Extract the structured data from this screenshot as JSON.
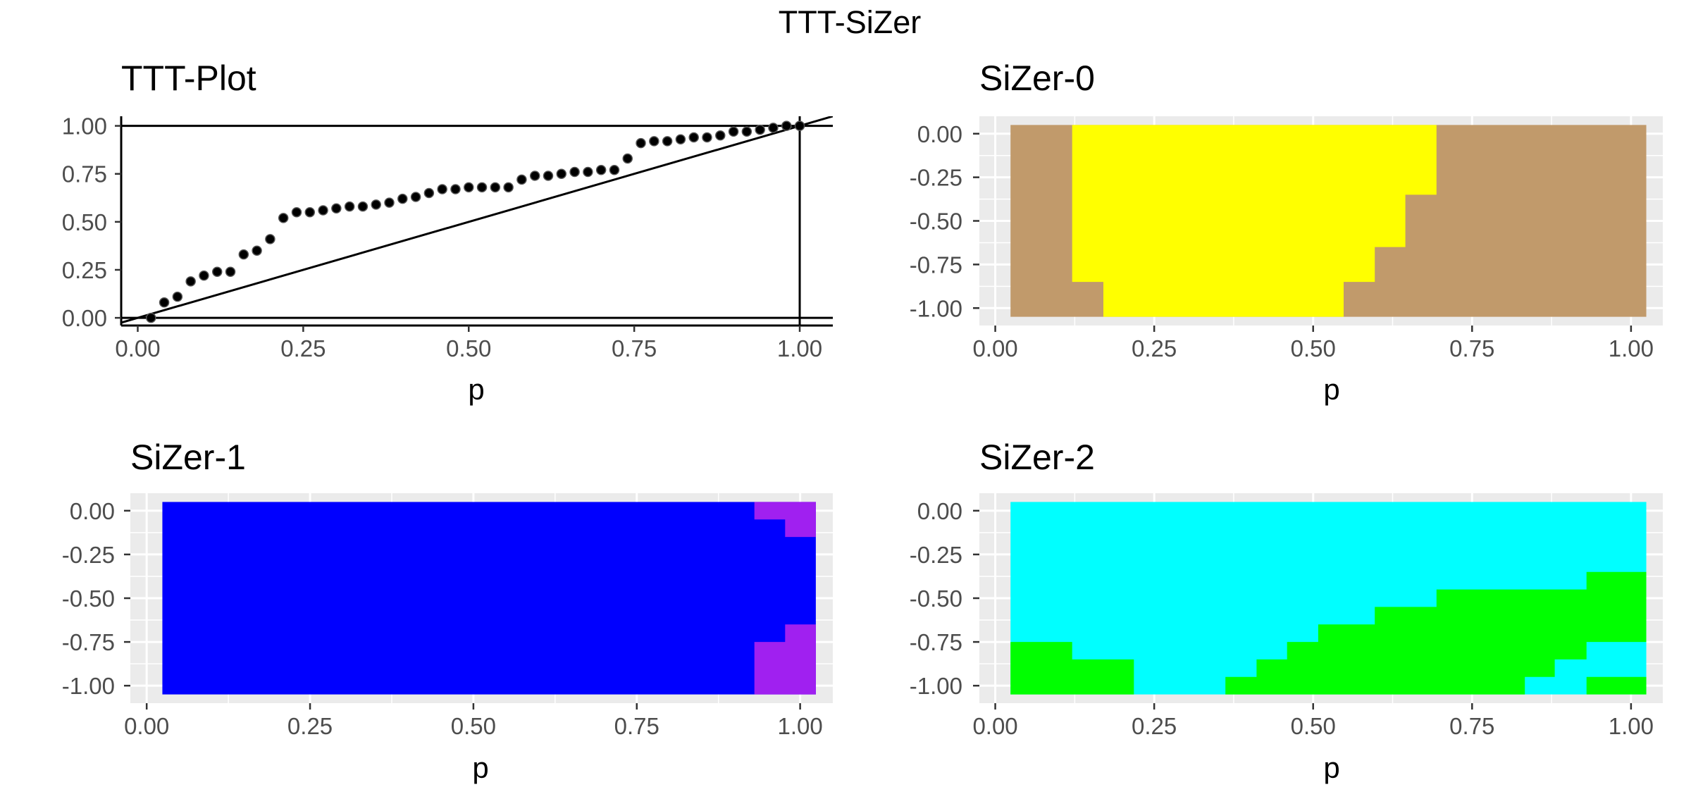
{
  "figure_title": "TTT-SiZer",
  "colors": {
    "panel_gray": "#EBEBEB",
    "grid_white": "#FFFFFF",
    "tick_text": "#4D4D4D",
    "tick_mark": "#333333"
  },
  "chart_data": [
    {
      "id": "ttt",
      "type": "scatter",
      "title": "TTT-Plot",
      "xlabel": "p",
      "ylabel": "",
      "xlim": [
        -0.025,
        1.05
      ],
      "ylim": [
        -0.04,
        1.05
      ],
      "x_ticks": [
        "0.00",
        "0.25",
        "0.50",
        "0.75",
        "1.00"
      ],
      "y_ticks": [
        "0.00",
        "0.25",
        "0.50",
        "0.75",
        "1.00"
      ],
      "background": "white",
      "reference_lines": {
        "hlines": [
          0,
          1
        ],
        "vline": 1,
        "diagonal": true
      },
      "points": [
        [
          0.02,
          0.0
        ],
        [
          0.04,
          0.08
        ],
        [
          0.06,
          0.11
        ],
        [
          0.08,
          0.19
        ],
        [
          0.1,
          0.22
        ],
        [
          0.12,
          0.24
        ],
        [
          0.14,
          0.24
        ],
        [
          0.16,
          0.33
        ],
        [
          0.18,
          0.35
        ],
        [
          0.2,
          0.41
        ],
        [
          0.22,
          0.52
        ],
        [
          0.24,
          0.55
        ],
        [
          0.26,
          0.55
        ],
        [
          0.28,
          0.56
        ],
        [
          0.3,
          0.57
        ],
        [
          0.32,
          0.58
        ],
        [
          0.34,
          0.58
        ],
        [
          0.36,
          0.59
        ],
        [
          0.38,
          0.6
        ],
        [
          0.4,
          0.62
        ],
        [
          0.42,
          0.63
        ],
        [
          0.44,
          0.65
        ],
        [
          0.46,
          0.67
        ],
        [
          0.48,
          0.67
        ],
        [
          0.5,
          0.68
        ],
        [
          0.52,
          0.68
        ],
        [
          0.54,
          0.68
        ],
        [
          0.56,
          0.68
        ],
        [
          0.58,
          0.72
        ],
        [
          0.6,
          0.74
        ],
        [
          0.62,
          0.74
        ],
        [
          0.64,
          0.75
        ],
        [
          0.66,
          0.76
        ],
        [
          0.68,
          0.76
        ],
        [
          0.7,
          0.77
        ],
        [
          0.72,
          0.77
        ],
        [
          0.74,
          0.83
        ],
        [
          0.76,
          0.91
        ],
        [
          0.78,
          0.92
        ],
        [
          0.8,
          0.92
        ],
        [
          0.82,
          0.93
        ],
        [
          0.84,
          0.94
        ],
        [
          0.86,
          0.94
        ],
        [
          0.88,
          0.95
        ],
        [
          0.9,
          0.97
        ],
        [
          0.92,
          0.97
        ],
        [
          0.94,
          0.98
        ],
        [
          0.96,
          0.99
        ],
        [
          0.98,
          1.0
        ],
        [
          1.0,
          1.0
        ]
      ]
    },
    {
      "id": "sizer0",
      "type": "heatmap",
      "title": "SiZer-0",
      "xlabel": "p",
      "ylabel": "",
      "xlim": [
        -0.025,
        1.05
      ],
      "ylim": [
        -1.1,
        0.1
      ],
      "x_ticks": [
        "0.00",
        "0.25",
        "0.50",
        "0.75",
        "1.00"
      ],
      "y_ticks": [
        "0.00",
        "-0.25",
        "-0.50",
        "-0.75",
        "-1.00"
      ],
      "background": "gray",
      "regions": [
        {
          "color": "#C19A6B",
          "x": [
            0.024,
            1.024
          ],
          "y": [
            -1.05,
            0.05
          ]
        },
        {
          "color": "#FFFF00",
          "polygon": [
            [
              0.121,
              0.05
            ],
            [
              0.694,
              0.05
            ],
            [
              0.694,
              -0.35
            ],
            [
              0.645,
              -0.35
            ],
            [
              0.645,
              -0.65
            ],
            [
              0.597,
              -0.65
            ],
            [
              0.597,
              -0.85
            ],
            [
              0.548,
              -0.85
            ],
            [
              0.548,
              -1.05
            ],
            [
              0.17,
              -1.05
            ],
            [
              0.17,
              -0.85
            ],
            [
              0.121,
              -0.85
            ]
          ]
        }
      ]
    },
    {
      "id": "sizer1",
      "type": "heatmap",
      "title": "SiZer-1",
      "xlabel": "p",
      "ylabel": "",
      "xlim": [
        -0.025,
        1.05
      ],
      "ylim": [
        -1.1,
        0.1
      ],
      "x_ticks": [
        "0.00",
        "0.25",
        "0.50",
        "0.75",
        "1.00"
      ],
      "y_ticks": [
        "0.00",
        "-0.25",
        "-0.50",
        "-0.75",
        "-1.00"
      ],
      "background": "gray",
      "regions": [
        {
          "color": "#0000FF",
          "x": [
            0.024,
            1.024
          ],
          "y": [
            -1.05,
            0.05
          ]
        },
        {
          "color": "#A020F0",
          "polygon": [
            [
              0.93,
              0.05
            ],
            [
              1.024,
              0.05
            ],
            [
              1.024,
              -0.15
            ],
            [
              0.977,
              -0.15
            ],
            [
              0.977,
              -0.05
            ],
            [
              0.93,
              -0.05
            ]
          ]
        },
        {
          "color": "#A020F0",
          "polygon": [
            [
              0.977,
              -0.65
            ],
            [
              1.024,
              -0.65
            ],
            [
              1.024,
              -1.05
            ],
            [
              0.93,
              -1.05
            ],
            [
              0.93,
              -0.75
            ],
            [
              0.977,
              -0.75
            ]
          ]
        }
      ]
    },
    {
      "id": "sizer2",
      "type": "heatmap",
      "title": "SiZer-2",
      "xlabel": "p",
      "ylabel": "",
      "xlim": [
        -0.025,
        1.05
      ],
      "ylim": [
        -1.1,
        0.1
      ],
      "x_ticks": [
        "0.00",
        "0.25",
        "0.50",
        "0.75",
        "1.00"
      ],
      "y_ticks": [
        "0.00",
        "-0.25",
        "-0.50",
        "-0.75",
        "-1.00"
      ],
      "background": "gray",
      "regions": [
        {
          "color": "#00FFFF",
          "x": [
            0.024,
            1.024
          ],
          "y": [
            -1.05,
            0.05
          ]
        },
        {
          "color": "#00FF00",
          "polygon": [
            [
              0.024,
              -0.75
            ],
            [
              0.121,
              -0.75
            ],
            [
              0.121,
              -0.85
            ],
            [
              0.218,
              -0.85
            ],
            [
              0.218,
              -1.05
            ],
            [
              0.024,
              -1.05
            ]
          ]
        },
        {
          "color": "#00FF00",
          "polygon": [
            [
              0.362,
              -0.95
            ],
            [
              0.411,
              -0.95
            ],
            [
              0.411,
              -0.85
            ],
            [
              0.459,
              -0.85
            ],
            [
              0.459,
              -0.75
            ],
            [
              0.508,
              -0.75
            ],
            [
              0.508,
              -0.65
            ],
            [
              0.597,
              -0.65
            ],
            [
              0.597,
              -0.55
            ],
            [
              0.694,
              -0.55
            ],
            [
              0.694,
              -0.45
            ],
            [
              0.93,
              -0.45
            ],
            [
              0.93,
              -0.35
            ],
            [
              1.024,
              -0.35
            ],
            [
              1.024,
              -0.75
            ],
            [
              0.93,
              -0.75
            ],
            [
              0.93,
              -0.85
            ],
            [
              0.88,
              -0.85
            ],
            [
              0.88,
              -0.95
            ],
            [
              0.833,
              -0.95
            ],
            [
              0.833,
              -1.05
            ],
            [
              0.362,
              -1.05
            ]
          ]
        },
        {
          "color": "#00FF00",
          "x": [
            0.93,
            1.024
          ],
          "y": [
            -1.05,
            -0.95
          ]
        }
      ]
    }
  ]
}
